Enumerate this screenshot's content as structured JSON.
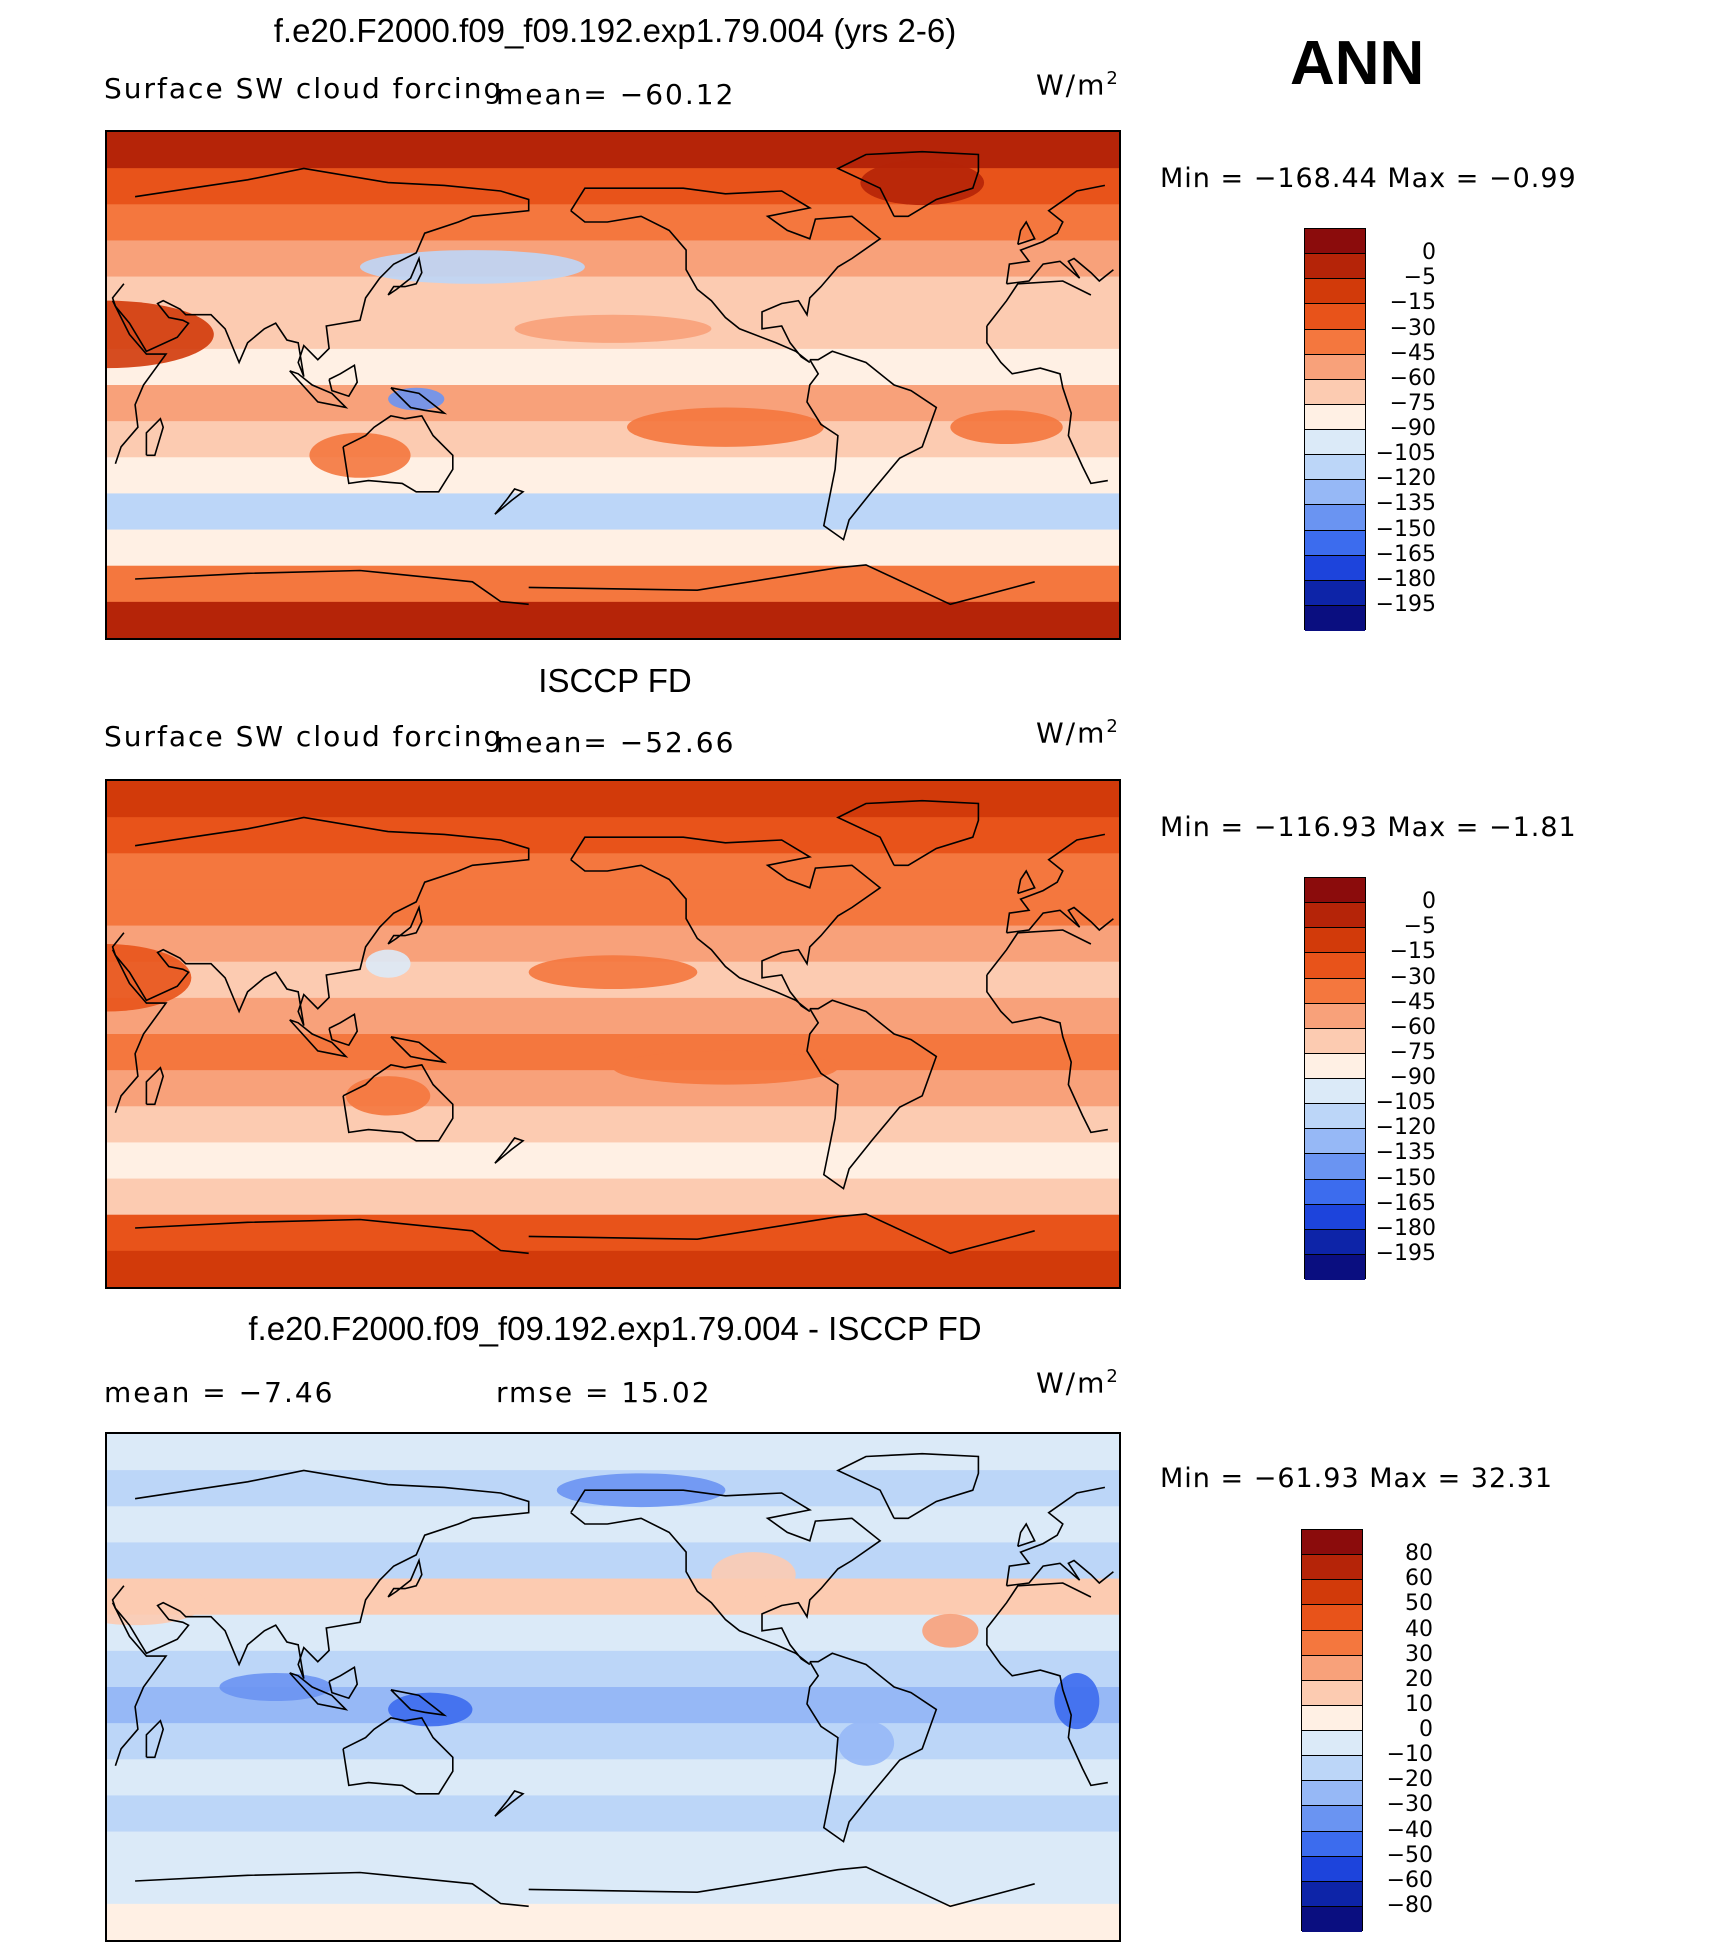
{
  "season": "ANN",
  "panels": [
    {
      "id": "model",
      "title": "f.e20.F2000.f09_f09.192.exp1.79.004 (yrs 2-6)",
      "variable": "Surface SW cloud forcing",
      "stat_left": "",
      "stat_mean": "mean=  −60.12",
      "units": "W/m",
      "units_exp": "2",
      "minmax": "Min  =  −168.44  Max  =    −0.99",
      "scale": "abs"
    },
    {
      "id": "obs",
      "title": "ISCCP FD",
      "variable": "Surface SW cloud forcing",
      "stat_left": "",
      "stat_mean": "mean=  −52.66",
      "units": "W/m",
      "units_exp": "2",
      "minmax": "Min  =  −116.93  Max  =    −1.81",
      "scale": "abs"
    },
    {
      "id": "diff",
      "title": "f.e20.F2000.f09_f09.192.exp1.79.004 - ISCCP FD",
      "variable": "",
      "stat_left": "mean  =    −7.46",
      "stat_mean": "rmse  =    15.02",
      "units": "W/m",
      "units_exp": "2",
      "minmax": "Min  =  −61.93  Max  =    32.31",
      "scale": "diff"
    }
  ],
  "colorbars": {
    "abs": {
      "labels": [
        "0",
        "−5",
        "−15",
        "−30",
        "−45",
        "−60",
        "−75",
        "−90",
        "−105",
        "−120",
        "−135",
        "−150",
        "−165",
        "−180",
        "−195"
      ],
      "colors": [
        "#8b0c0c",
        "#b52408",
        "#d23a0a",
        "#e8531a",
        "#f4773e",
        "#f8a17a",
        "#fccbb1",
        "#fff0e4",
        "#dbeaf8",
        "#bcd6f8",
        "#96b8f6",
        "#6a94f2",
        "#3c6cee",
        "#1d44dc",
        "#0d24a8",
        "#0a0e80"
      ]
    },
    "diff": {
      "labels": [
        "80",
        "60",
        "50",
        "40",
        "30",
        "20",
        "10",
        "0",
        "−10",
        "−20",
        "−30",
        "−40",
        "−50",
        "−60",
        "−80"
      ],
      "colors": [
        "#8b0c0c",
        "#b52408",
        "#d23a0a",
        "#e8531a",
        "#f4773e",
        "#f8a17a",
        "#fccbb1",
        "#fff0e4",
        "#dbeaf8",
        "#bcd6f8",
        "#96b8f6",
        "#6a94f2",
        "#3c6cee",
        "#1d44dc",
        "#0d24a8",
        "#0a0e80"
      ]
    }
  },
  "map_fill": {
    "model": {
      "bands": [
        "#b52408",
        "#e8531a",
        "#f4773e",
        "#f8a17a",
        "#fccbb1",
        "#fccbb1",
        "#fff0e4",
        "#f8a17a",
        "#fccbb1",
        "#fff0e4",
        "#bcd6f8",
        "#fff0e4",
        "#f4773e",
        "#b52408"
      ],
      "blobs": [
        {
          "lon": 30,
          "lat": 18,
          "rx": 38,
          "ry": 12,
          "c": "#d23a0a"
        },
        {
          "lon": -40,
          "lat": 72,
          "rx": 22,
          "ry": 8,
          "c": "#b52408"
        },
        {
          "lon": 160,
          "lat": 42,
          "rx": 40,
          "ry": 6,
          "c": "#bcd6f8"
        },
        {
          "lon": 140,
          "lat": -5,
          "rx": 10,
          "ry": 4,
          "c": "#6a94f2"
        },
        {
          "lon": -110,
          "lat": -15,
          "rx": 35,
          "ry": 7,
          "c": "#f4773e"
        },
        {
          "lon": -150,
          "lat": 20,
          "rx": 35,
          "ry": 5,
          "c": "#f8a17a"
        },
        {
          "lon": 120,
          "lat": -25,
          "rx": 18,
          "ry": 8,
          "c": "#f4773e"
        },
        {
          "lon": -10,
          "lat": -15,
          "rx": 20,
          "ry": 6,
          "c": "#f4773e"
        }
      ]
    },
    "obs": {
      "bands": [
        "#d23a0a",
        "#e8531a",
        "#f4773e",
        "#f4773e",
        "#f8a17a",
        "#fccbb1",
        "#f8a17a",
        "#f4773e",
        "#f8a17a",
        "#fccbb1",
        "#fff0e4",
        "#fccbb1",
        "#e8531a",
        "#d23a0a"
      ],
      "blobs": [
        {
          "lon": 30,
          "lat": 20,
          "rx": 30,
          "ry": 12,
          "c": "#e8531a"
        },
        {
          "lon": -150,
          "lat": 22,
          "rx": 30,
          "ry": 6,
          "c": "#f4773e"
        },
        {
          "lon": -110,
          "lat": -12,
          "rx": 40,
          "ry": 6,
          "c": "#f4773e"
        },
        {
          "lon": 130,
          "lat": -22,
          "rx": 15,
          "ry": 7,
          "c": "#f4773e"
        },
        {
          "lon": 130,
          "lat": 25,
          "rx": 8,
          "ry": 5,
          "c": "#dbeaf8"
        }
      ]
    },
    "diff": {
      "bands": [
        "#dbeaf8",
        "#bcd6f8",
        "#dbeaf8",
        "#bcd6f8",
        "#fccbb1",
        "#dbeaf8",
        "#bcd6f8",
        "#96b8f6",
        "#bcd6f8",
        "#dbeaf8",
        "#bcd6f8",
        "#dbeaf8",
        "#dbeaf8",
        "#fff0e4"
      ],
      "blobs": [
        {
          "lon": 40,
          "lat": 30,
          "rx": 25,
          "ry": 8,
          "c": "#fccbb1"
        },
        {
          "lon": -100,
          "lat": 40,
          "rx": 15,
          "ry": 8,
          "c": "#fccbb1"
        },
        {
          "lon": 15,
          "lat": -5,
          "rx": 8,
          "ry": 10,
          "c": "#3c6cee"
        },
        {
          "lon": 90,
          "lat": 0,
          "rx": 20,
          "ry": 5,
          "c": "#6a94f2"
        },
        {
          "lon": 145,
          "lat": -8,
          "rx": 15,
          "ry": 6,
          "c": "#3c6cee"
        },
        {
          "lon": -60,
          "lat": -20,
          "rx": 10,
          "ry": 8,
          "c": "#96b8f6"
        },
        {
          "lon": -30,
          "lat": 20,
          "rx": 10,
          "ry": 6,
          "c": "#f8a17a"
        },
        {
          "lon": -140,
          "lat": 70,
          "rx": 30,
          "ry": 6,
          "c": "#6a94f2"
        }
      ]
    }
  }
}
